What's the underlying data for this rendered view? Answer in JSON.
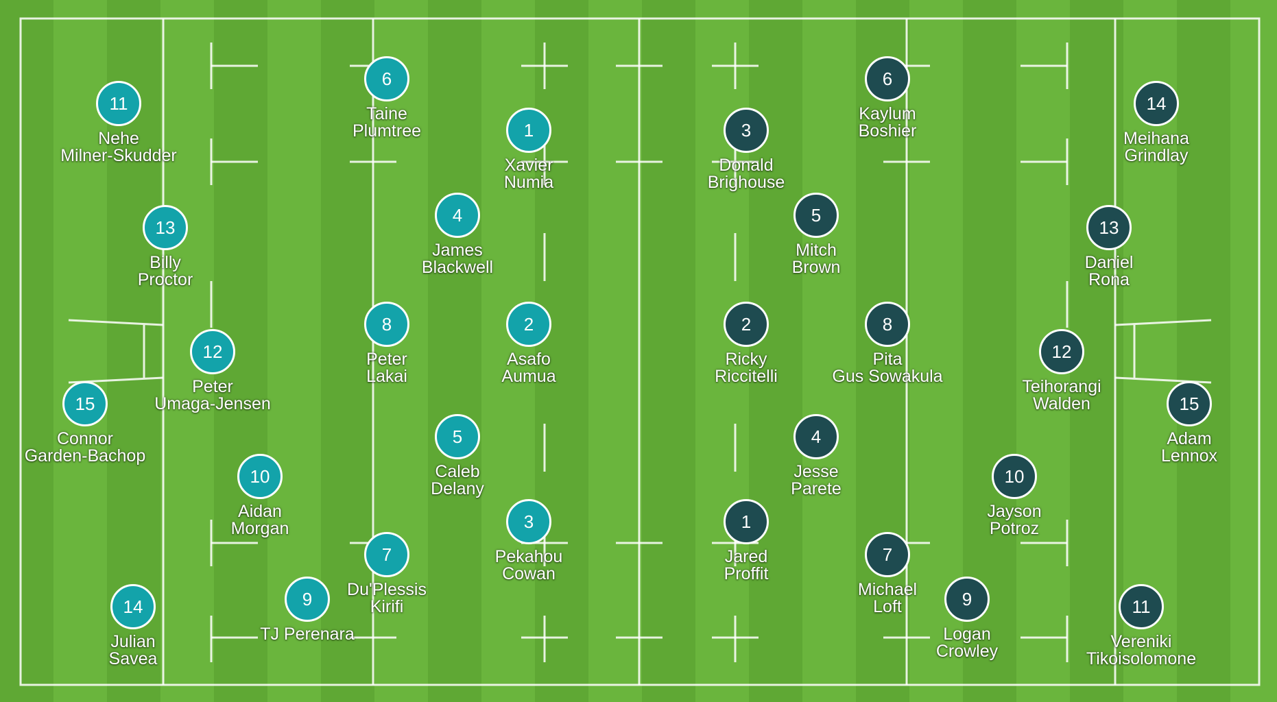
{
  "colors": {
    "pitch_dark": "#5fa834",
    "pitch_light": "#6ab53d",
    "lines": "#ffffff",
    "home_team": "#13a3aa",
    "away_team": "#1e4b50"
  },
  "home": {
    "players": [
      {
        "number": "11",
        "line1": "Nehe",
        "line2": "Milner-Skudder"
      },
      {
        "number": "6",
        "line1": "Taine",
        "line2": "Plumtree"
      },
      {
        "number": "1",
        "line1": "Xavier",
        "line2": "Numia"
      },
      {
        "number": "13",
        "line1": "Billy",
        "line2": "Proctor"
      },
      {
        "number": "4",
        "line1": "James",
        "line2": "Blackwell"
      },
      {
        "number": "12",
        "line1": "Peter",
        "line2": "Umaga-Jensen"
      },
      {
        "number": "8",
        "line1": "Peter",
        "line2": "Lakai"
      },
      {
        "number": "2",
        "line1": "Asafo",
        "line2": "Aumua"
      },
      {
        "number": "15",
        "line1": "Connor",
        "line2": "Garden-Bachop"
      },
      {
        "number": "5",
        "line1": "Caleb",
        "line2": "Delany"
      },
      {
        "number": "10",
        "line1": "Aidan",
        "line2": "Morgan"
      },
      {
        "number": "3",
        "line1": "Pekahou",
        "line2": "Cowan"
      },
      {
        "number": "7",
        "line1": "Du'Plessis",
        "line2": "Kirifi"
      },
      {
        "number": "9",
        "line1": "TJ Perenara",
        "line2": ""
      },
      {
        "number": "14",
        "line1": "Julian",
        "line2": "Savea"
      }
    ]
  },
  "away": {
    "players": [
      {
        "number": "6",
        "line1": "Kaylum",
        "line2": "Boshier"
      },
      {
        "number": "14",
        "line1": "Meihana",
        "line2": "Grindlay"
      },
      {
        "number": "3",
        "line1": "Donald",
        "line2": "Brighouse"
      },
      {
        "number": "5",
        "line1": "Mitch",
        "line2": "Brown"
      },
      {
        "number": "13",
        "line1": "Daniel",
        "line2": "Rona"
      },
      {
        "number": "2",
        "line1": "Ricky",
        "line2": "Riccitelli"
      },
      {
        "number": "8",
        "line1": "Pita",
        "line2": "Gus Sowakula"
      },
      {
        "number": "12",
        "line1": "Teihorangi",
        "line2": "Walden"
      },
      {
        "number": "15",
        "line1": "Adam",
        "line2": "Lennox"
      },
      {
        "number": "4",
        "line1": "Jesse",
        "line2": "Parete"
      },
      {
        "number": "10",
        "line1": "Jayson",
        "line2": "Potroz"
      },
      {
        "number": "1",
        "line1": "Jared",
        "line2": "Proffit"
      },
      {
        "number": "7",
        "line1": "Michael",
        "line2": "Loft"
      },
      {
        "number": "9",
        "line1": "Logan",
        "line2": "Crowley"
      },
      {
        "number": "11",
        "line1": "Vereniki",
        "line2": "Tikoisolomone"
      }
    ]
  }
}
